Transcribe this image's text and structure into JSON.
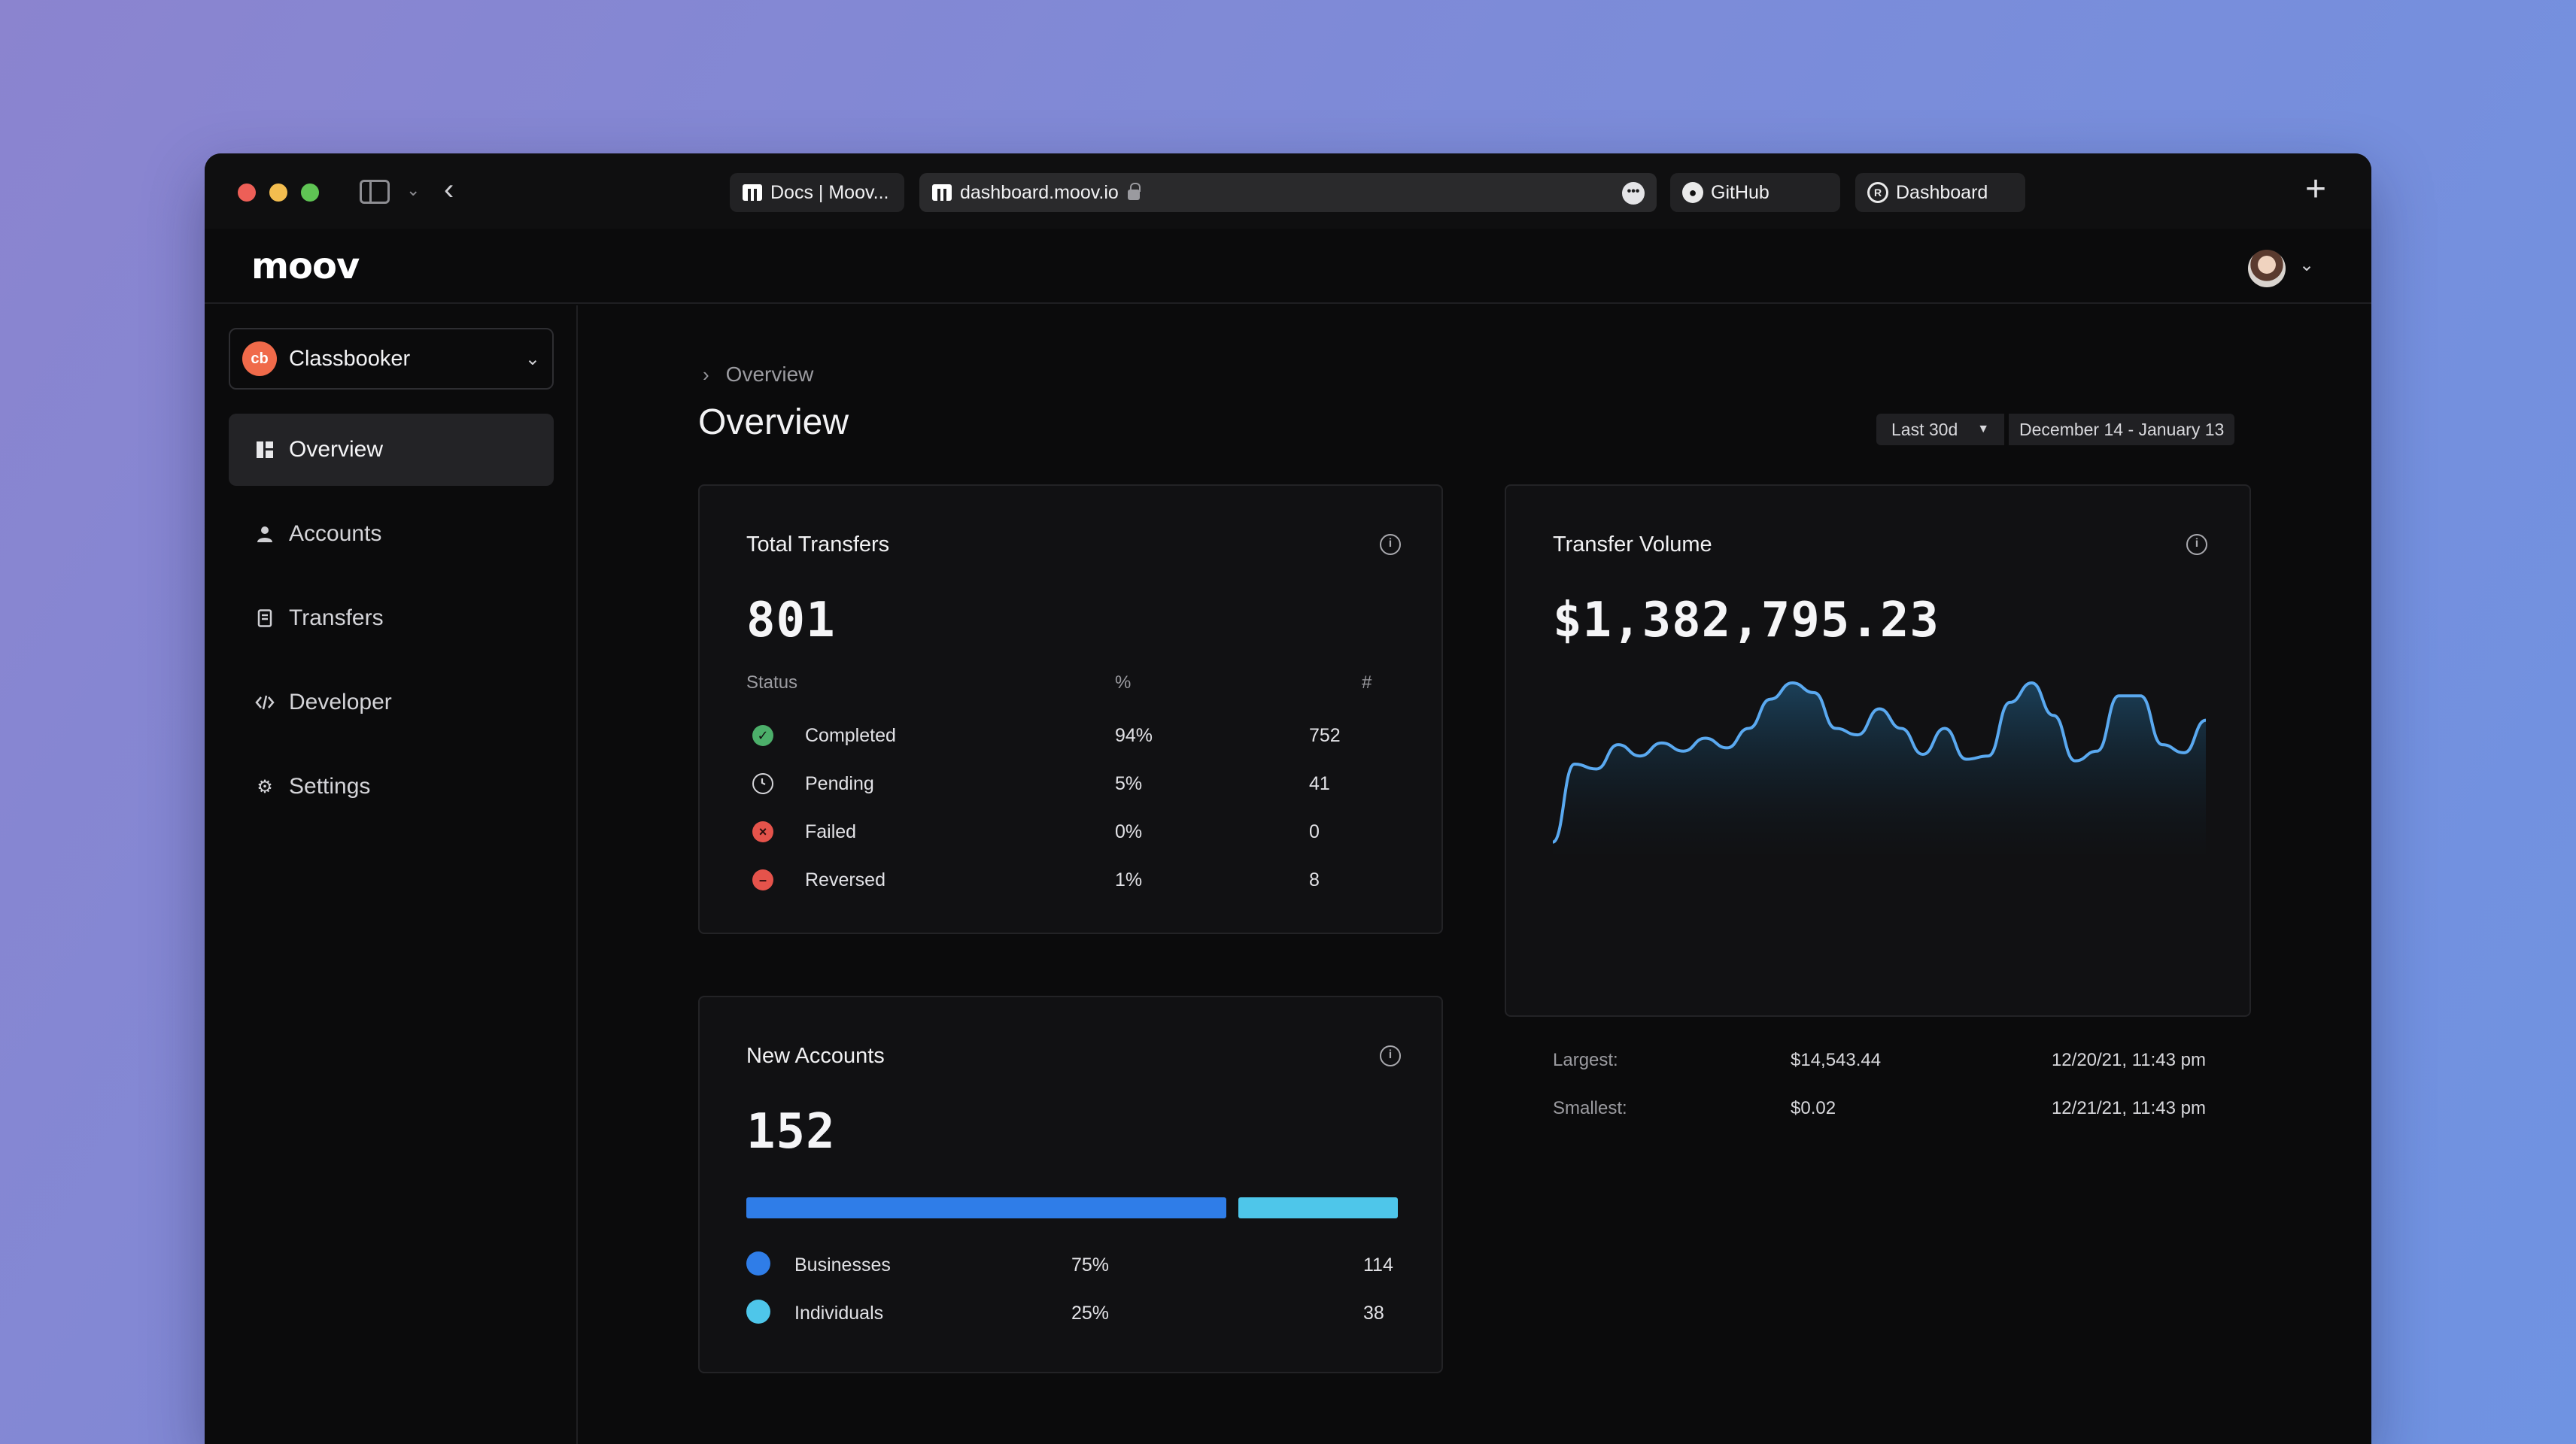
{
  "browser": {
    "tabs": [
      {
        "label": "Docs | Moov..."
      },
      {
        "label": "dashboard.moov.io"
      },
      {
        "label": "GitHub"
      },
      {
        "label": "Dashboard"
      }
    ]
  },
  "app": {
    "logo": "moov"
  },
  "nav": {
    "org": {
      "badge": "cb",
      "name": "Classbooker"
    },
    "items": [
      {
        "label": "Overview",
        "icon": "overview-icon",
        "active": true
      },
      {
        "label": "Accounts",
        "icon": "person-icon",
        "active": false
      },
      {
        "label": "Transfers",
        "icon": "receipt-icon",
        "active": false
      },
      {
        "label": "Developer",
        "icon": "code-icon",
        "active": false
      },
      {
        "label": "Settings",
        "icon": "gear-icon",
        "active": false
      }
    ]
  },
  "main": {
    "breadcrumb": "Overview",
    "title": "Overview",
    "range_label": "Last 30d",
    "range_dates": "December 14 - January 13"
  },
  "total_transfers": {
    "title": "Total Transfers",
    "total": "801",
    "headers": {
      "status": "Status",
      "pct": "%",
      "count": "#"
    },
    "rows": [
      {
        "label": "Completed",
        "pct": "94%",
        "count": "752",
        "color": "#4caf6a",
        "icon": "check-circle-icon"
      },
      {
        "label": "Pending",
        "pct": "5%",
        "count": "41",
        "color": "#d4d4d8",
        "icon": "clock-icon"
      },
      {
        "label": "Failed",
        "pct": "0%",
        "count": "0",
        "color": "#e5534b",
        "icon": "x-circle-icon"
      },
      {
        "label": "Reversed",
        "pct": "1%",
        "count": "8",
        "color": "#e5534b",
        "icon": "minus-circle-icon"
      }
    ]
  },
  "transfer_volume": {
    "title": "Transfer Volume",
    "total": "$1,382,795.23",
    "line_color": "#5aa9f0",
    "series": [
      0.02,
      0.5,
      0.47,
      0.62,
      0.55,
      0.63,
      0.58,
      0.66,
      0.6,
      0.72,
      0.9,
      1.0,
      0.94,
      0.72,
      0.68,
      0.84,
      0.72,
      0.56,
      0.72,
      0.53,
      0.55,
      0.88,
      1.0,
      0.8,
      0.52,
      0.58,
      0.92,
      0.92,
      0.62,
      0.57,
      0.77
    ],
    "largest": {
      "label": "Largest:",
      "value": "$14,543.44",
      "date": "12/20/21, 11:43 pm"
    },
    "smallest": {
      "label": "Smallest:",
      "value": "$0.02",
      "date": "12/21/21, 11:43 pm"
    }
  },
  "new_accounts": {
    "title": "New Accounts",
    "total": "152",
    "rows": [
      {
        "label": "Businesses",
        "pct": "75%",
        "count": "114",
        "share": 0.75,
        "color": "#2f7de8"
      },
      {
        "label": "Individuals",
        "pct": "25%",
        "count": "38",
        "share": 0.25,
        "color": "#4ec6ea"
      }
    ]
  }
}
